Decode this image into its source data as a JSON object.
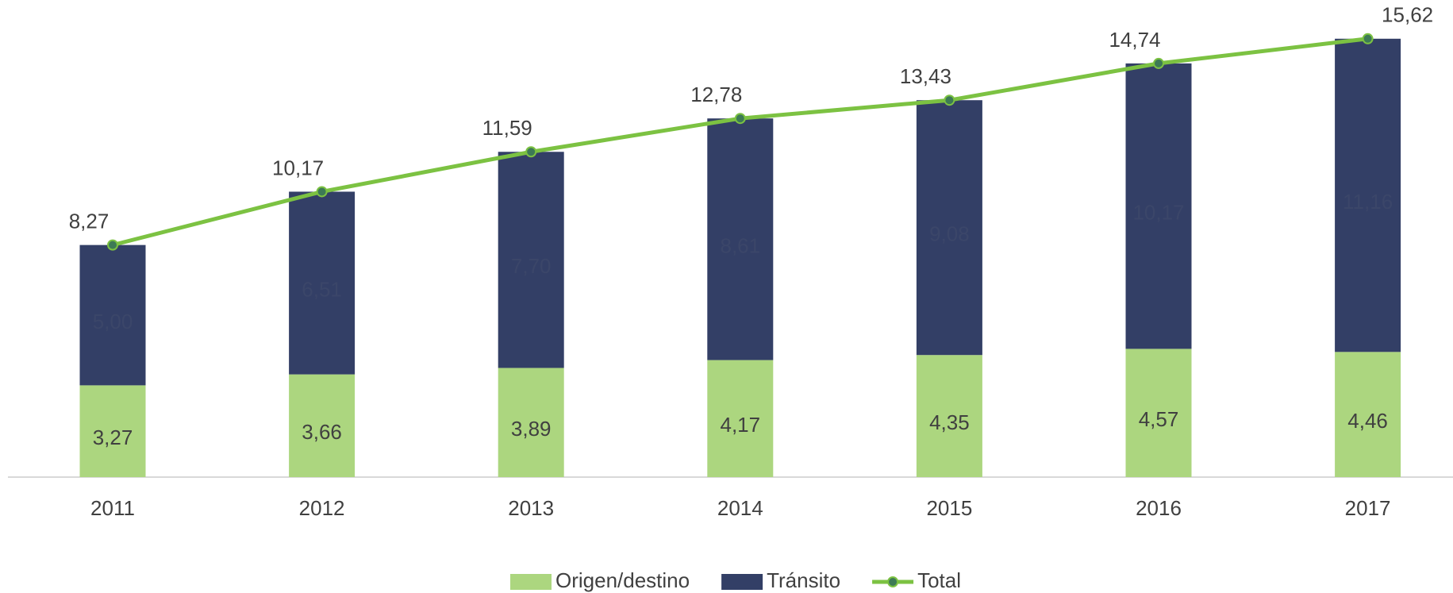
{
  "chart_data": {
    "type": "bar",
    "categories": [
      "2011",
      "2012",
      "2013",
      "2014",
      "2015",
      "2016",
      "2017"
    ],
    "stacked": true,
    "series": [
      {
        "name": "Origen/destino",
        "color": "#acd67f",
        "values": [
          3.27,
          3.66,
          3.89,
          4.17,
          4.35,
          4.57,
          4.46
        ],
        "value_labels": [
          "3,27",
          "3,66",
          "3,89",
          "4,17",
          "4,35",
          "4,57",
          "4,46"
        ]
      },
      {
        "name": "Tránsito",
        "color": "#333f66",
        "values": [
          5.0,
          6.51,
          7.7,
          8.61,
          9.08,
          10.17,
          11.16
        ],
        "value_labels": [
          "5,00",
          "6,51",
          "7,70",
          "8,61",
          "9,08",
          "10,17",
          "11,16"
        ]
      },
      {
        "name": "Total",
        "type": "line",
        "color": "#7cc242",
        "marker_color": "#3d7a55",
        "values": [
          8.27,
          10.17,
          11.59,
          12.78,
          13.43,
          14.74,
          15.62
        ],
        "value_labels": [
          "8,27",
          "10,17",
          "11,59",
          "12,78",
          "13,43",
          "14,74",
          "15,62"
        ]
      }
    ],
    "ylim": [
      0,
      17
    ],
    "legend": "bottom"
  }
}
